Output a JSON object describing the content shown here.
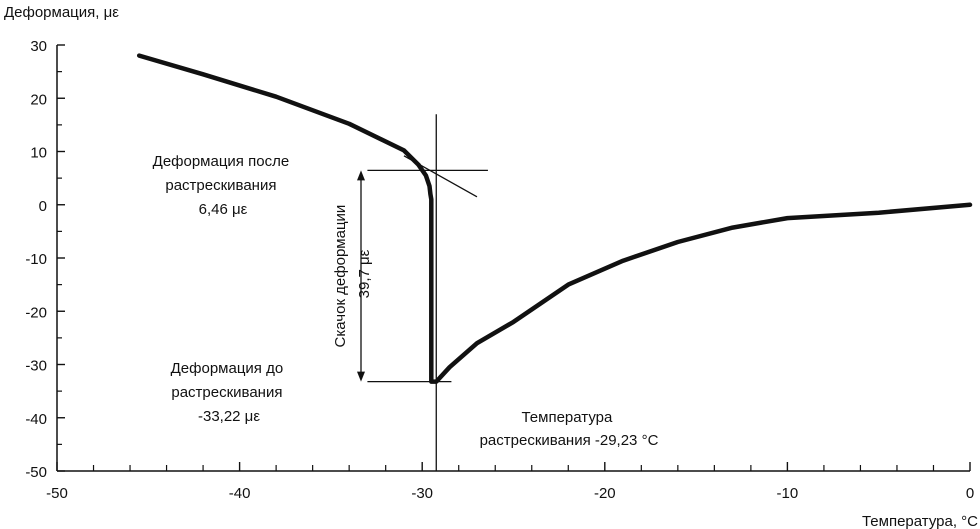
{
  "chart_data": {
    "type": "line",
    "ylabel": "Деформация, με",
    "xlabel": "Температура, °C",
    "xlim": [
      -50,
      0
    ],
    "ylim": [
      -50,
      30
    ],
    "x_ticks": [
      -50,
      -40,
      -30,
      -20,
      -10,
      0
    ],
    "x_tick_labels": [
      "-50",
      "-40",
      "-30",
      "-20",
      "-10",
      "0"
    ],
    "y_ticks": [
      30,
      20,
      10,
      0,
      -10,
      -20,
      -30,
      -40,
      -50
    ],
    "y_tick_labels": [
      "30",
      "20",
      "10",
      "0",
      "-10",
      "-20",
      "-30",
      "-40",
      "-50"
    ],
    "grid": false,
    "series": [
      {
        "x": [
          -45.5,
          -42,
          -38,
          -34,
          -31,
          -30.2,
          -29.8,
          -29.6,
          -29.55,
          -29.5,
          -29.5,
          -29.23,
          -28.5,
          -27,
          -25,
          -22,
          -19,
          -16,
          -13,
          -10,
          -5,
          0
        ],
        "y": [
          28,
          24.5,
          20.3,
          15.2,
          10.2,
          7.5,
          5.5,
          3.5,
          2.0,
          1.0,
          -33.22,
          -33.22,
          -30.5,
          -26,
          -22,
          -15,
          -10.5,
          -7,
          -4.3,
          -2.5,
          -1.5,
          0
        ]
      }
    ],
    "annotations": {
      "after_label": [
        "Деформация после",
        "растрескивания",
        "6,46 με"
      ],
      "before_label": [
        "Деформация до",
        "растрескивания",
        "-33,22 με"
      ],
      "jump_label": [
        "Скачок деформации",
        "39,7 με"
      ],
      "temp_label": [
        "Температура",
        "растрескивания -29,23 °C"
      ]
    },
    "reference_lines": {
      "crack_temperature": -29.23,
      "after_strain": 6.46,
      "before_strain": -33.22,
      "tangent_x": [
        -31,
        -27
      ],
      "tangent_y": [
        9.2,
        1.5
      ]
    }
  }
}
